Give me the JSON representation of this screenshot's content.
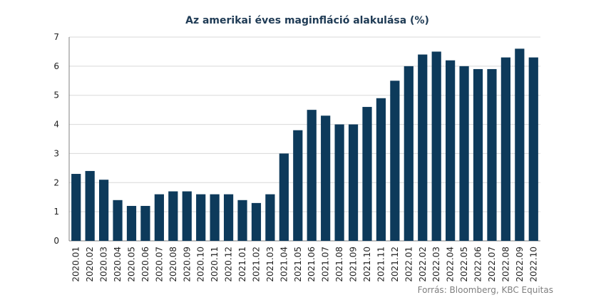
{
  "source_note": "Forrás: Bloomberg, KBC Equitas",
  "colors": {
    "bar": "#0d3a5b",
    "grid": "#d9d9d9",
    "axis": "#808080"
  },
  "chart_data": {
    "type": "bar",
    "title": "Az amerikai éves maginfláció alakulása (%)",
    "xlabel": "",
    "ylabel": "",
    "ylim": [
      0,
      7
    ],
    "yticks": [
      0,
      1,
      2,
      3,
      4,
      5,
      6,
      7
    ],
    "grid": true,
    "categories": [
      "2020.01",
      "2020.02",
      "2020.03",
      "2020.04",
      "2020.05",
      "2020.06",
      "2020.07",
      "2020.08",
      "2020.09",
      "2020.10",
      "2020.11",
      "2020.12",
      "2021.01",
      "2021.02",
      "2021.03",
      "2021.04",
      "2021.05",
      "2021.06",
      "2021.07",
      "2021.08",
      "2021.09",
      "2021.10",
      "2021.11",
      "2021.12",
      "2022.01",
      "2022.02",
      "2022.03",
      "2022.04",
      "2022.05",
      "2022.06",
      "2022.07",
      "2022.08",
      "2022.09",
      "2022.10"
    ],
    "values": [
      2.3,
      2.4,
      2.1,
      1.4,
      1.2,
      1.2,
      1.6,
      1.7,
      1.7,
      1.6,
      1.6,
      1.6,
      1.4,
      1.3,
      1.6,
      3.0,
      3.8,
      4.5,
      4.3,
      4.0,
      4.0,
      4.6,
      4.9,
      5.5,
      6.0,
      6.4,
      6.5,
      6.2,
      6.0,
      5.9,
      5.9,
      6.3,
      6.6,
      6.3
    ]
  }
}
